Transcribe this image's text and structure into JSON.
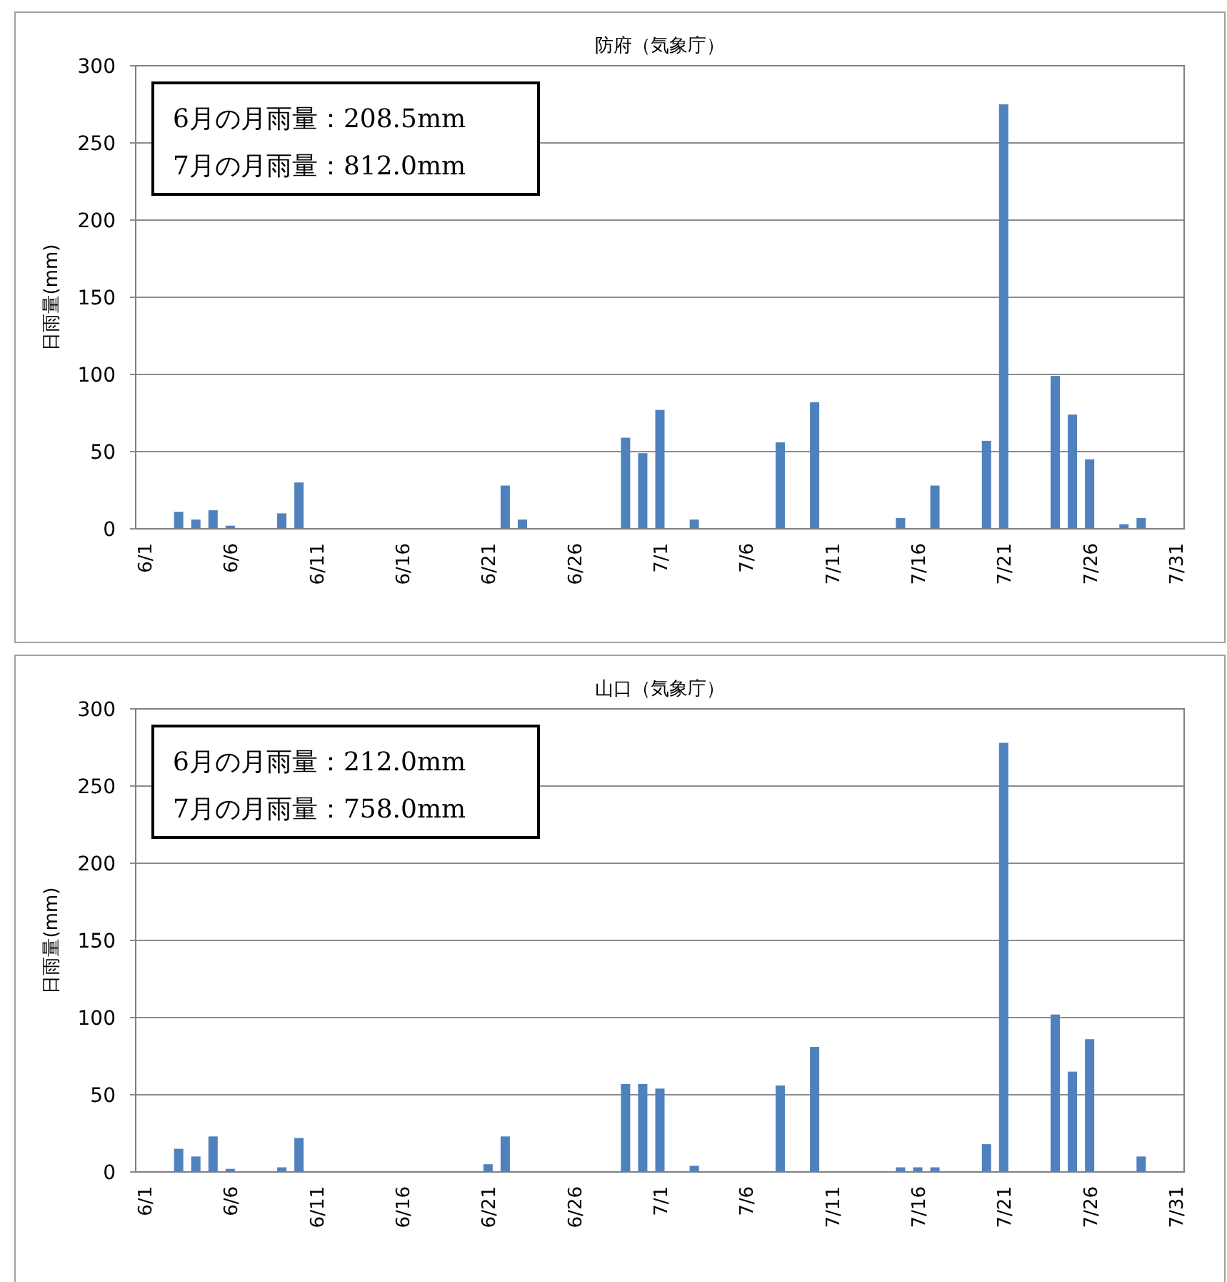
{
  "chart_data": [
    {
      "type": "bar",
      "title": "防府（気象庁）",
      "ylabel": "日雨量(mm)",
      "color": "#4f81bd",
      "ylim": [
        0,
        300
      ],
      "yticks": [
        0,
        50,
        100,
        150,
        200,
        250,
        300
      ],
      "grid": "y",
      "annotations": [
        "6月の月雨量：208.5mm",
        "7月の月雨量：812.0mm"
      ],
      "categories": [
        "6/1",
        null,
        null,
        null,
        null,
        "6/6",
        null,
        null,
        null,
        null,
        "6/11",
        null,
        null,
        null,
        null,
        "6/16",
        null,
        null,
        null,
        null,
        "6/21",
        null,
        null,
        null,
        null,
        "6/26",
        null,
        null,
        null,
        null,
        "7/1",
        null,
        null,
        null,
        null,
        "7/6",
        null,
        null,
        null,
        null,
        "7/11",
        null,
        null,
        null,
        null,
        "7/16",
        null,
        null,
        null,
        null,
        "7/21",
        null,
        null,
        null,
        null,
        "7/26",
        null,
        null,
        null,
        null,
        "7/31"
      ],
      "values": [
        0,
        0,
        11,
        6,
        12,
        2,
        0,
        0,
        10,
        30,
        0,
        0,
        0,
        0,
        0,
        0,
        0,
        0,
        0,
        0,
        0,
        28,
        6,
        0,
        0,
        0,
        0,
        0,
        59,
        49,
        77,
        0,
        6,
        0,
        0,
        0,
        0,
        56,
        0,
        82,
        0,
        0,
        0,
        0,
        7,
        0,
        28,
        0,
        0,
        57,
        275,
        0,
        0,
        99,
        74,
        45,
        0,
        3,
        7,
        0,
        0
      ]
    },
    {
      "type": "bar",
      "title": "山口（気象庁）",
      "ylabel": "日雨量(mm)",
      "color": "#4f81bd",
      "ylim": [
        0,
        300
      ],
      "yticks": [
        0,
        50,
        100,
        150,
        200,
        250,
        300
      ],
      "grid": "y",
      "annotations": [
        "6月の月雨量：212.0mm",
        "7月の月雨量：758.0mm"
      ],
      "categories": [
        "6/1",
        null,
        null,
        null,
        null,
        "6/6",
        null,
        null,
        null,
        null,
        "6/11",
        null,
        null,
        null,
        null,
        "6/16",
        null,
        null,
        null,
        null,
        "6/21",
        null,
        null,
        null,
        null,
        "6/26",
        null,
        null,
        null,
        null,
        "7/1",
        null,
        null,
        null,
        null,
        "7/6",
        null,
        null,
        null,
        null,
        "7/11",
        null,
        null,
        null,
        null,
        "7/16",
        null,
        null,
        null,
        null,
        "7/21",
        null,
        null,
        null,
        null,
        "7/26",
        null,
        null,
        null,
        null,
        "7/31"
      ],
      "values": [
        0,
        0,
        15,
        10,
        23,
        2,
        0,
        0,
        3,
        22,
        0,
        0,
        0,
        0,
        0,
        0,
        0,
        0,
        0,
        0,
        5,
        23,
        0,
        0,
        0,
        0,
        0,
        0,
        57,
        57,
        54,
        0,
        4,
        0,
        0,
        0,
        0,
        56,
        0,
        81,
        0,
        0,
        0,
        0,
        3,
        3,
        3,
        0,
        0,
        18,
        278,
        0,
        0,
        102,
        65,
        86,
        0,
        0,
        10,
        0,
        0
      ]
    }
  ]
}
